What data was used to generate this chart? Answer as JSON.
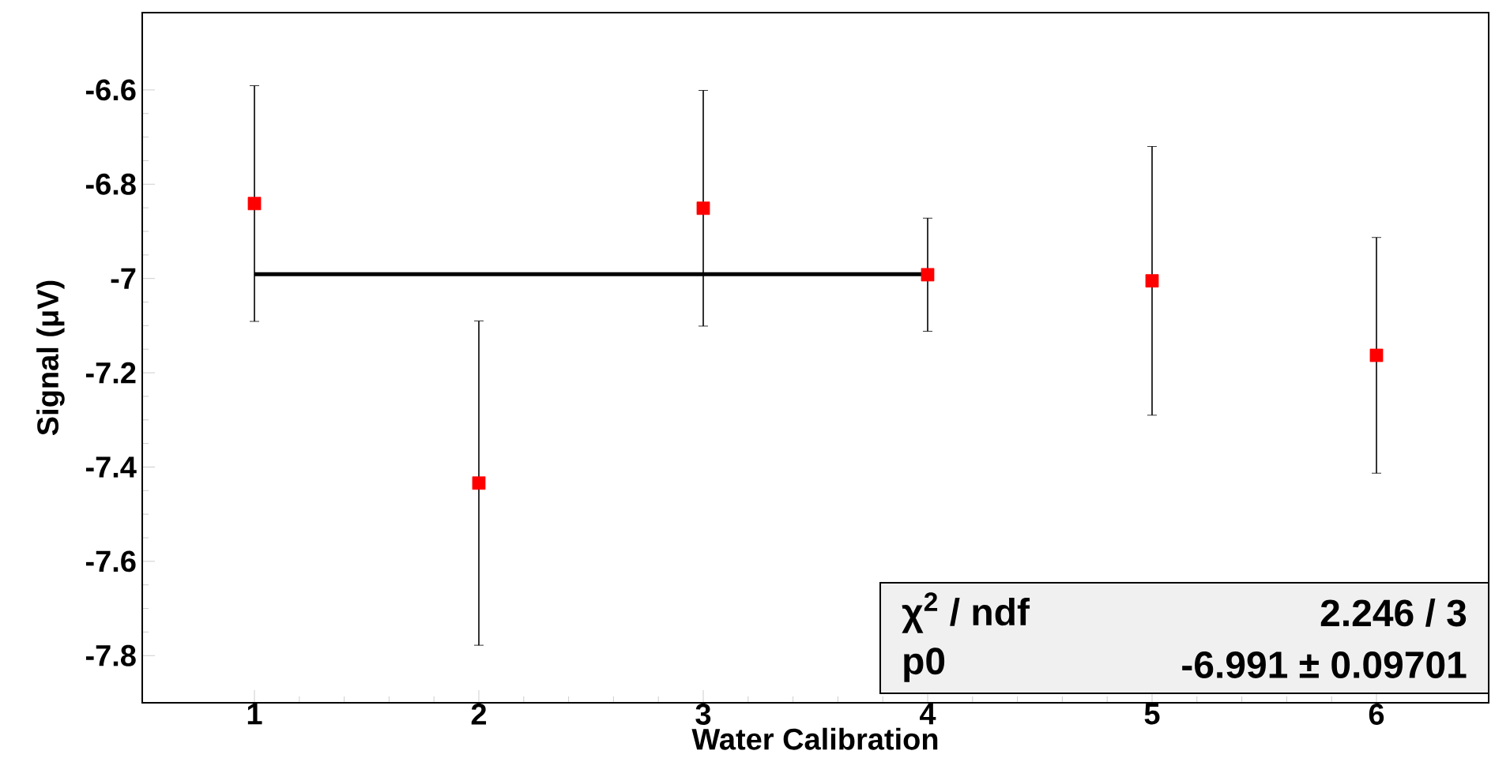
{
  "chart_data": {
    "type": "scatter",
    "xlabel": "Water Calibration",
    "ylabel": "Signal (μV)",
    "x": [
      1,
      2,
      3,
      4,
      5,
      6
    ],
    "series": [
      {
        "marker": "square",
        "color": "#ff0000",
        "values": [
          -6.841,
          -7.434,
          -6.851,
          -6.992,
          -7.005,
          -7.163
        ],
        "errors": [
          0.25,
          0.344,
          0.25,
          0.12,
          0.285,
          0.25
        ]
      },
      {
        "type": "line",
        "marker": "none",
        "color": "#000000",
        "x": [
          1,
          4
        ],
        "values": [
          -6.991,
          -6.991
        ]
      }
    ],
    "xlim": [
      0.5,
      6.5
    ],
    "xticks": [
      1,
      2,
      3,
      4,
      5,
      6
    ],
    "ylim": [
      -7.9,
      -6.436
    ],
    "yticks": [
      -7.8,
      -7.6,
      -7.4,
      -7.2,
      -7,
      -6.8,
      -6.6
    ],
    "grid": false,
    "annotations": [
      "χ$^{2}$ / ndf",
      "2.246 / 3",
      "p0",
      "-6.991 ± 0.09701"
    ]
  }
}
